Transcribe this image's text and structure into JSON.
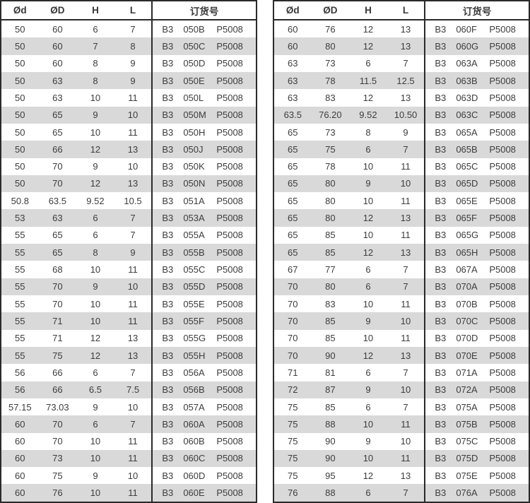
{
  "headers": [
    "Ød",
    "ØD",
    "H",
    "L",
    "订货号"
  ],
  "colors": {
    "row_alternate": "#d9d9d9",
    "border": "#2a2a2a",
    "text": "#3d3d3d",
    "background": "#ffffff"
  },
  "tables": [
    {
      "rows": [
        [
          "50",
          "60",
          "6",
          "7",
          "B3",
          "050B",
          "P5008"
        ],
        [
          "50",
          "60",
          "7",
          "8",
          "B3",
          "050C",
          "P5008"
        ],
        [
          "50",
          "60",
          "8",
          "9",
          "B3",
          "050D",
          "P5008"
        ],
        [
          "50",
          "63",
          "8",
          "9",
          "B3",
          "050E",
          "P5008"
        ],
        [
          "50",
          "63",
          "10",
          "11",
          "B3",
          "050L",
          "P5008"
        ],
        [
          "50",
          "65",
          "9",
          "10",
          "B3",
          "050M",
          "P5008"
        ],
        [
          "50",
          "65",
          "10",
          "11",
          "B3",
          "050H",
          "P5008"
        ],
        [
          "50",
          "66",
          "12",
          "13",
          "B3",
          "050J",
          "P5008"
        ],
        [
          "50",
          "70",
          "9",
          "10",
          "B3",
          "050K",
          "P5008"
        ],
        [
          "50",
          "70",
          "12",
          "13",
          "B3",
          "050N",
          "P5008"
        ],
        [
          "50.8",
          "63.5",
          "9.52",
          "10.5",
          "B3",
          "051A",
          "P5008"
        ],
        [
          "53",
          "63",
          "6",
          "7",
          "B3",
          "053A",
          "P5008"
        ],
        [
          "55",
          "65",
          "6",
          "7",
          "B3",
          "055A",
          "P5008"
        ],
        [
          "55",
          "65",
          "8",
          "9",
          "B3",
          "055B",
          "P5008"
        ],
        [
          "55",
          "68",
          "10",
          "11",
          "B3",
          "055C",
          "P5008"
        ],
        [
          "55",
          "70",
          "9",
          "10",
          "B3",
          "055D",
          "P5008"
        ],
        [
          "55",
          "70",
          "10",
          "11",
          "B3",
          "055E",
          "P5008"
        ],
        [
          "55",
          "71",
          "10",
          "11",
          "B3",
          "055F",
          "P5008"
        ],
        [
          "55",
          "71",
          "12",
          "13",
          "B3",
          "055G",
          "P5008"
        ],
        [
          "55",
          "75",
          "12",
          "13",
          "B3",
          "055H",
          "P5008"
        ],
        [
          "56",
          "66",
          "6",
          "7",
          "B3",
          "056A",
          "P5008"
        ],
        [
          "56",
          "66",
          "6.5",
          "7.5",
          "B3",
          "056B",
          "P5008"
        ],
        [
          "57.15",
          "73.03",
          "9",
          "10",
          "B3",
          "057A",
          "P5008"
        ],
        [
          "60",
          "70",
          "6",
          "7",
          "B3",
          "060A",
          "P5008"
        ],
        [
          "60",
          "70",
          "10",
          "11",
          "B3",
          "060B",
          "P5008"
        ],
        [
          "60",
          "73",
          "10",
          "11",
          "B3",
          "060C",
          "P5008"
        ],
        [
          "60",
          "75",
          "9",
          "10",
          "B3",
          "060D",
          "P5008"
        ],
        [
          "60",
          "76",
          "10",
          "11",
          "B3",
          "060E",
          "P5008"
        ]
      ]
    },
    {
      "rows": [
        [
          "60",
          "76",
          "12",
          "13",
          "B3",
          "060F",
          "P5008"
        ],
        [
          "60",
          "80",
          "12",
          "13",
          "B3",
          "060G",
          "P5008"
        ],
        [
          "63",
          "73",
          "6",
          "7",
          "B3",
          "063A",
          "P5008"
        ],
        [
          "63",
          "78",
          "11.5",
          "12.5",
          "B3",
          "063B",
          "P5008"
        ],
        [
          "63",
          "83",
          "12",
          "13",
          "B3",
          "063D",
          "P5008"
        ],
        [
          "63.5",
          "76.20",
          "9.52",
          "10.50",
          "B3",
          "063C",
          "P5008"
        ],
        [
          "65",
          "73",
          "8",
          "9",
          "B3",
          "065A",
          "P5008"
        ],
        [
          "65",
          "75",
          "6",
          "7",
          "B3",
          "065B",
          "P5008"
        ],
        [
          "65",
          "78",
          "10",
          "11",
          "B3",
          "065C",
          "P5008"
        ],
        [
          "65",
          "80",
          "9",
          "10",
          "B3",
          "065D",
          "P5008"
        ],
        [
          "65",
          "80",
          "10",
          "11",
          "B3",
          "065E",
          "P5008"
        ],
        [
          "65",
          "80",
          "12",
          "13",
          "B3",
          "065F",
          "P5008"
        ],
        [
          "65",
          "85",
          "10",
          "11",
          "B3",
          "065G",
          "P5008"
        ],
        [
          "65",
          "85",
          "12",
          "13",
          "B3",
          "065H",
          "P5008"
        ],
        [
          "67",
          "77",
          "6",
          "7",
          "B3",
          "067A",
          "P5008"
        ],
        [
          "70",
          "80",
          "6",
          "7",
          "B3",
          "070A",
          "P5008"
        ],
        [
          "70",
          "83",
          "10",
          "11",
          "B3",
          "070B",
          "P5008"
        ],
        [
          "70",
          "85",
          "9",
          "10",
          "B3",
          "070C",
          "P5008"
        ],
        [
          "70",
          "85",
          "10",
          "11",
          "B3",
          "070D",
          "P5008"
        ],
        [
          "70",
          "90",
          "12",
          "13",
          "B3",
          "070E",
          "P5008"
        ],
        [
          "71",
          "81",
          "6",
          "7",
          "B3",
          "071A",
          "P5008"
        ],
        [
          "72",
          "87",
          "9",
          "10",
          "B3",
          "072A",
          "P5008"
        ],
        [
          "75",
          "85",
          "6",
          "7",
          "B3",
          "075A",
          "P5008"
        ],
        [
          "75",
          "88",
          "10",
          "11",
          "B3",
          "075B",
          "P5008"
        ],
        [
          "75",
          "90",
          "9",
          "10",
          "B3",
          "075C",
          "P5008"
        ],
        [
          "75",
          "90",
          "10",
          "11",
          "B3",
          "075D",
          "P5008"
        ],
        [
          "75",
          "95",
          "12",
          "13",
          "B3",
          "075E",
          "P5008"
        ],
        [
          "76",
          "88",
          "6",
          "7",
          "B3",
          "076A",
          "P5008"
        ]
      ]
    }
  ]
}
